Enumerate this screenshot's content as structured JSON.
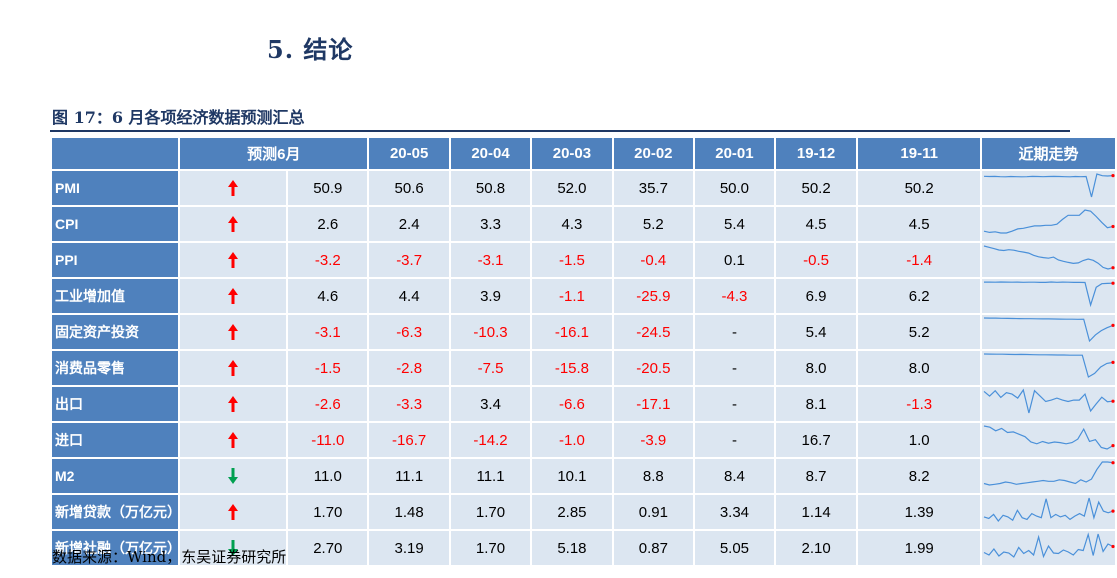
{
  "section_title": "5.  结论",
  "figure_title": "图 17：6 月各项经济数据预测汇总",
  "source": "数据来源：Wind，东吴证券研究所",
  "colors": {
    "header_bg": "#4f81bd",
    "cell_bg": "#dce6f1",
    "up_arrow": "#ff0000",
    "down_arrow": "#00a050",
    "negative": "#ff0000",
    "sparkline": "#4a90d9"
  },
  "table": {
    "headers": [
      "预测6月",
      "20-05",
      "20-04",
      "20-03",
      "20-02",
      "20-01",
      "19-12",
      "19-11",
      "近期走势"
    ],
    "rows": [
      {
        "label": "PMI",
        "arrow": "up",
        "values": [
          "50.9",
          "50.6",
          "50.8",
          "52.0",
          "35.7",
          "50.0",
          "50.2",
          "50.2"
        ]
      },
      {
        "label": "CPI",
        "arrow": "up",
        "values": [
          "2.6",
          "2.4",
          "3.3",
          "4.3",
          "5.2",
          "5.4",
          "4.5",
          "4.5"
        ]
      },
      {
        "label": "PPI",
        "arrow": "up",
        "values": [
          "-3.2",
          "-3.7",
          "-3.1",
          "-1.5",
          "-0.4",
          "0.1",
          "-0.5",
          "-1.4"
        ]
      },
      {
        "label": "工业增加值",
        "arrow": "up",
        "values": [
          "4.6",
          "4.4",
          "3.9",
          "-1.1",
          "-25.9",
          "-4.3",
          "6.9",
          "6.2"
        ]
      },
      {
        "label": "固定资产投资",
        "arrow": "up",
        "values": [
          "-3.1",
          "-6.3",
          "-10.3",
          "-16.1",
          "-24.5",
          "-",
          "5.4",
          "5.2"
        ]
      },
      {
        "label": "消费品零售",
        "arrow": "up",
        "values": [
          "-1.5",
          "-2.8",
          "-7.5",
          "-15.8",
          "-20.5",
          "-",
          "8.0",
          "8.0"
        ]
      },
      {
        "label": "出口",
        "arrow": "up",
        "values": [
          "-2.6",
          "-3.3",
          "3.4",
          "-6.6",
          "-17.1",
          "-",
          "8.1",
          "-1.3"
        ]
      },
      {
        "label": "进口",
        "arrow": "up",
        "values": [
          "-11.0",
          "-16.7",
          "-14.2",
          "-1.0",
          "-3.9",
          "-",
          "16.7",
          "1.0"
        ]
      },
      {
        "label": "M2",
        "arrow": "down",
        "values": [
          "11.0",
          "11.1",
          "11.1",
          "10.1",
          "8.8",
          "8.4",
          "8.7",
          "8.2"
        ]
      },
      {
        "label": "新增贷款（万亿元）",
        "arrow": "up",
        "values": [
          "1.70",
          "1.48",
          "1.70",
          "2.85",
          "0.91",
          "3.34",
          "1.14",
          "1.39"
        ]
      },
      {
        "label": "新增社融（万亿元）",
        "arrow": "down",
        "values": [
          "2.70",
          "3.19",
          "1.70",
          "5.18",
          "0.87",
          "5.05",
          "2.10",
          "1.99"
        ]
      }
    ]
  },
  "sparklines": [
    [
      50.4,
      50.2,
      50.3,
      50.1,
      50.0,
      50.2,
      50.1,
      50.0,
      50.1,
      50.3,
      50.2,
      50.1,
      50.2,
      50.3,
      50.2,
      50.1,
      50.0,
      50.2,
      50.1,
      50.2,
      35.7,
      52.0,
      50.8,
      50.6,
      50.9
    ],
    [
      1.8,
      1.6,
      1.7,
      1.5,
      1.5,
      1.8,
      2.2,
      2.3,
      2.5,
      2.7,
      2.7,
      2.8,
      2.8,
      3.0,
      3.8,
      4.5,
      4.5,
      4.5,
      5.4,
      5.2,
      4.3,
      3.3,
      2.4,
      2.6
    ],
    [
      5.0,
      4.5,
      4.0,
      3.5,
      3.3,
      3.6,
      3.4,
      3.0,
      2.7,
      2.3,
      1.5,
      0.9,
      0.6,
      0.4,
      0.8,
      -0.3,
      -0.8,
      -1.2,
      -1.6,
      -1.4,
      -0.5,
      0.1,
      -0.4,
      -1.5,
      -3.1,
      -3.7,
      -3.2
    ],
    [
      6.2,
      6.1,
      6.0,
      6.3,
      6.1,
      6.0,
      6.2,
      5.9,
      6.0,
      6.0,
      5.8,
      5.7,
      6.3,
      5.9,
      6.1,
      6.0,
      5.8,
      5.7,
      5.6,
      -25.9,
      -1.1,
      3.9,
      4.4,
      4.6
    ],
    [
      7.0,
      6.9,
      6.8,
      6.6,
      6.4,
      6.3,
      6.2,
      6.1,
      6.0,
      5.9,
      5.8,
      5.7,
      5.6,
      5.5,
      5.4,
      5.3,
      5.2,
      5.4,
      -24.5,
      -16.1,
      -10.3,
      -6.3,
      -3.1
    ],
    [
      9.5,
      9.4,
      9.2,
      9.3,
      9.0,
      8.9,
      9.0,
      8.8,
      8.6,
      8.5,
      8.4,
      8.3,
      8.2,
      8.2,
      8.0,
      8.0,
      8.0,
      -20.5,
      -15.8,
      -7.5,
      -2.8,
      -1.5
    ],
    [
      12,
      5,
      13,
      3,
      10,
      8,
      2,
      14,
      -20,
      13,
      5,
      -3,
      -1,
      2,
      -1,
      -3,
      -1,
      -1,
      8,
      -17,
      -6.6,
      3.4,
      -3.3,
      -2.6
    ],
    [
      22,
      20,
      14,
      18,
      11,
      12,
      8,
      4,
      -5,
      -8,
      -4,
      -7,
      -5,
      -6,
      -8,
      -6,
      0,
      16.7,
      -3.9,
      -1,
      -14.2,
      -16.7,
      -11.0
    ],
    [
      8.2,
      8.0,
      8.1,
      8.2,
      8.4,
      8.3,
      8.1,
      8.2,
      8.3,
      8.4,
      8.5,
      8.6,
      8.5,
      8.5,
      8.7,
      8.6,
      8.4,
      8.2,
      8.7,
      8.4,
      8.8,
      10.1,
      11.1,
      11.1,
      11.0
    ],
    [
      1.0,
      0.8,
      1.3,
      0.5,
      1.2,
      1.0,
      0.6,
      1.8,
      0.9,
      0.7,
      1.4,
      1.1,
      0.9,
      3.2,
      0.9,
      1.3,
      1.0,
      1.2,
      0.7,
      1.1,
      1.4,
      1.1,
      3.3,
      0.9,
      2.8,
      1.7,
      1.5,
      1.7
    ],
    [
      1.5,
      1.0,
      2.2,
      0.8,
      1.6,
      1.4,
      0.6,
      2.5,
      1.3,
      1.9,
      1.0,
      4.6,
      0.7,
      2.8,
      1.4,
      1.3,
      2.0,
      1.6,
      1.0,
      2.1,
      1.9,
      5.1,
      0.9,
      5.2,
      1.7,
      3.2,
      2.7
    ]
  ]
}
